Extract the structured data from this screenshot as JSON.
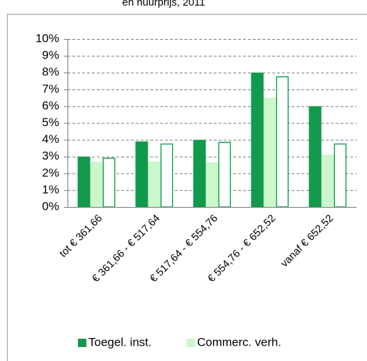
{
  "chart_data": {
    "type": "bar",
    "title": "en huurprijs, 2011",
    "categories": [
      "tot € 361,66",
      "€ 361,66 - € 517,64",
      "€ 517,64 - € 554,76",
      "€ 554,76 - € 652,52",
      "vanaf € 652,52"
    ],
    "series": [
      {
        "name": "Toegel. inst.",
        "color": "#11994c",
        "values": [
          3.0,
          3.9,
          4.0,
          8.0,
          6.0
        ]
      },
      {
        "name": "Commerc. verh.",
        "color": "#ccf7cc",
        "values": [
          2.7,
          2.7,
          2.65,
          6.5,
          3.1
        ]
      },
      {
        "color": "#1aa352",
        "outline": true,
        "values": [
          2.9,
          3.75,
          3.85,
          7.75,
          3.75
        ]
      }
    ],
    "ylim": [
      0,
      10
    ],
    "yticks": [
      {
        "value": 0,
        "label": "0%"
      },
      {
        "value": 1,
        "label": "1%"
      },
      {
        "value": 2,
        "label": "2%"
      },
      {
        "value": 3,
        "label": "3%"
      },
      {
        "value": 4,
        "label": "4%"
      },
      {
        "value": 5,
        "label": "5%"
      },
      {
        "value": 6,
        "label": "6%"
      },
      {
        "value": 7,
        "label": "7%"
      },
      {
        "value": 8,
        "label": "8%"
      },
      {
        "value": 9,
        "label": "9%"
      },
      {
        "value": 10,
        "label": "10%"
      }
    ],
    "grid": true
  }
}
